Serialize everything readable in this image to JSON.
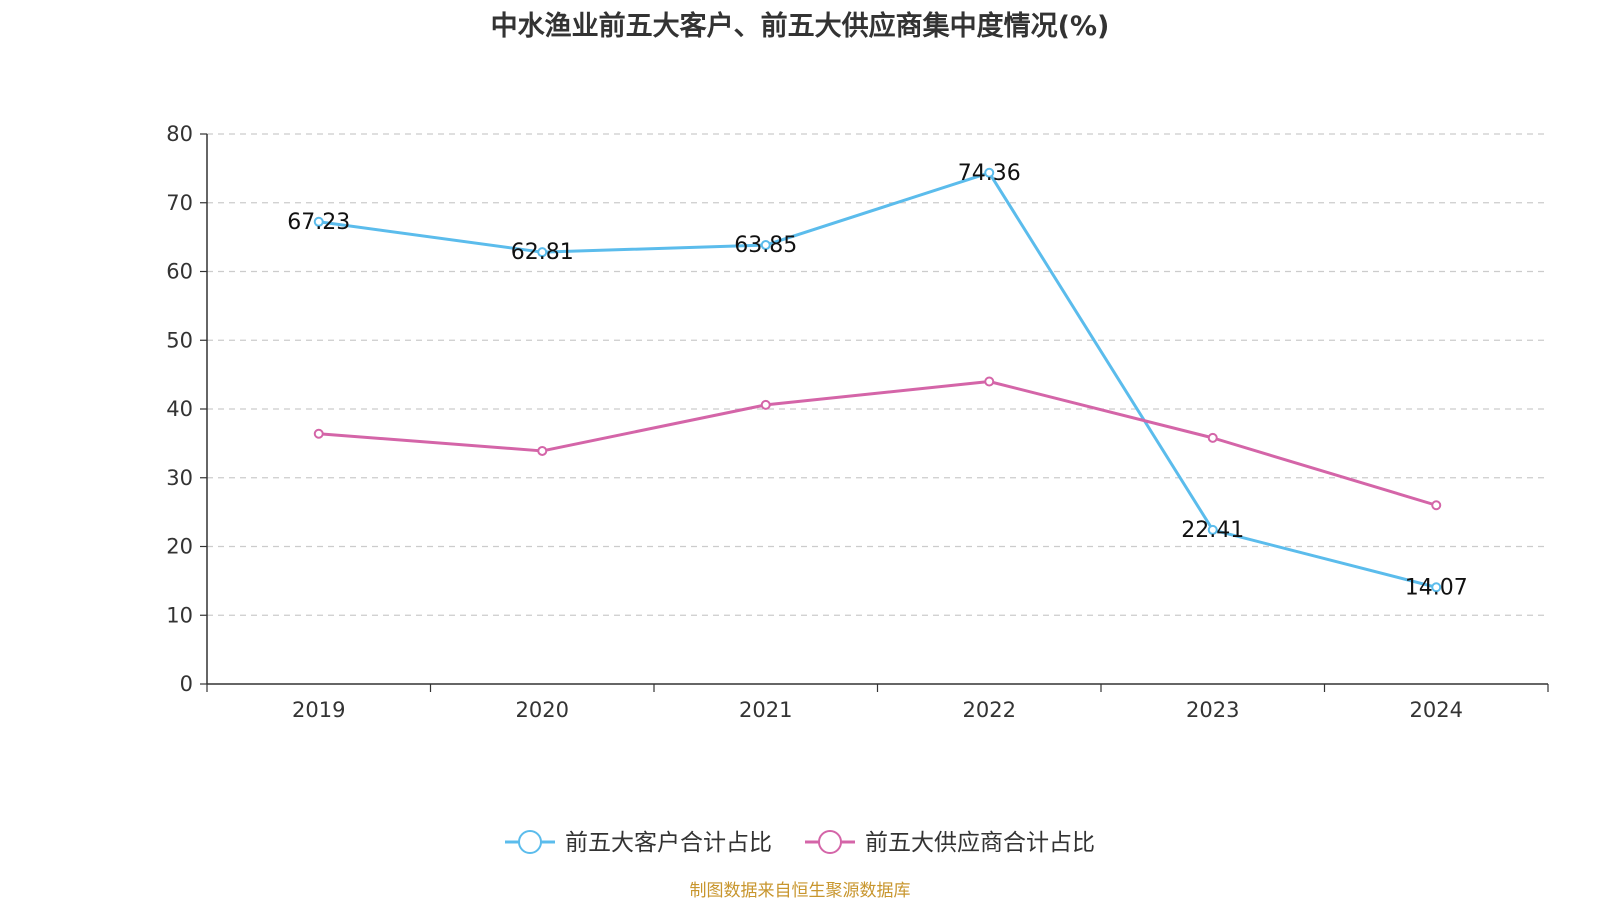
{
  "source_text": "制图数据来自恒生聚源数据库",
  "chart_data": {
    "type": "line",
    "title": "中水渔业前五大客户、前五大供应商集中度情况(%)",
    "xlabel": "",
    "ylabel": "",
    "categories": [
      "2019",
      "2020",
      "2021",
      "2022",
      "2023",
      "2024"
    ],
    "ylim": [
      0,
      80
    ],
    "yticks": [
      0,
      10,
      20,
      30,
      40,
      50,
      60,
      70,
      80
    ],
    "grid": true,
    "legend_position": "bottom-center",
    "series": [
      {
        "name": "前五大客户合计占比",
        "color": "#5bbcec",
        "values": [
          67.23,
          62.81,
          63.85,
          74.36,
          22.41,
          14.07
        ],
        "labels": [
          "67.23",
          "62.81",
          "63.85",
          "74.36",
          "22.41",
          "14.07"
        ],
        "show_labels": true
      },
      {
        "name": "前五大供应商合计占比",
        "color": "#d465a8",
        "values": [
          36.4,
          33.9,
          40.6,
          44.0,
          35.8,
          26.0
        ],
        "show_labels": false
      }
    ]
  }
}
